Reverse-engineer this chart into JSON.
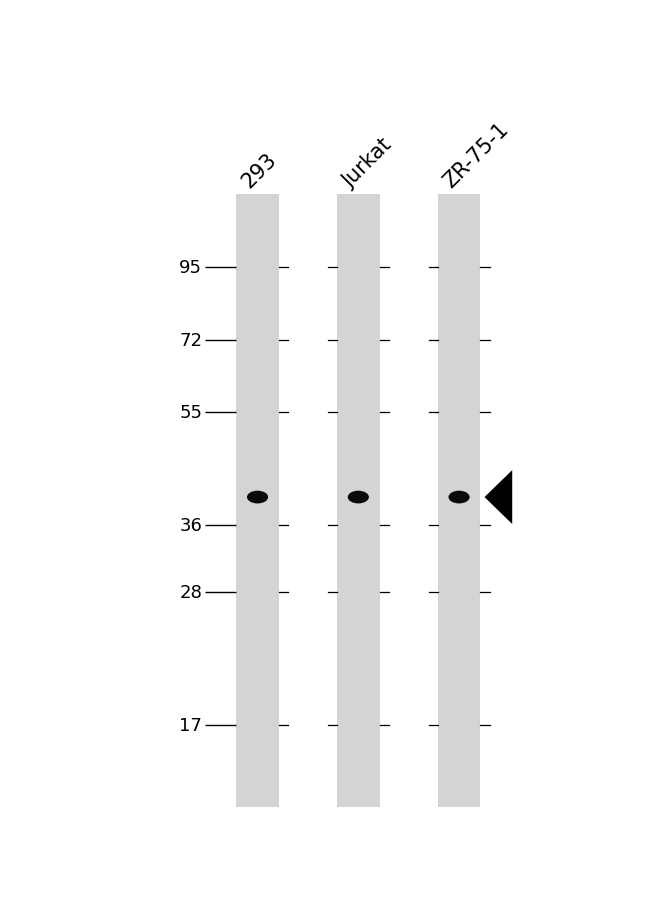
{
  "background_color": "#ffffff",
  "gel_color": "#d4d4d4",
  "lane_labels": [
    "293",
    "Jurkat",
    "ZR-75-1"
  ],
  "mw_markers": [
    95,
    72,
    55,
    36,
    28,
    17
  ],
  "band_mw": 40,
  "arrow_lane": 2,
  "mw_label_fontsize": 13,
  "lane_label_fontsize": 15,
  "label_rotation": 45,
  "log_mw_min": 3.8,
  "log_mw_max": 4.75
}
